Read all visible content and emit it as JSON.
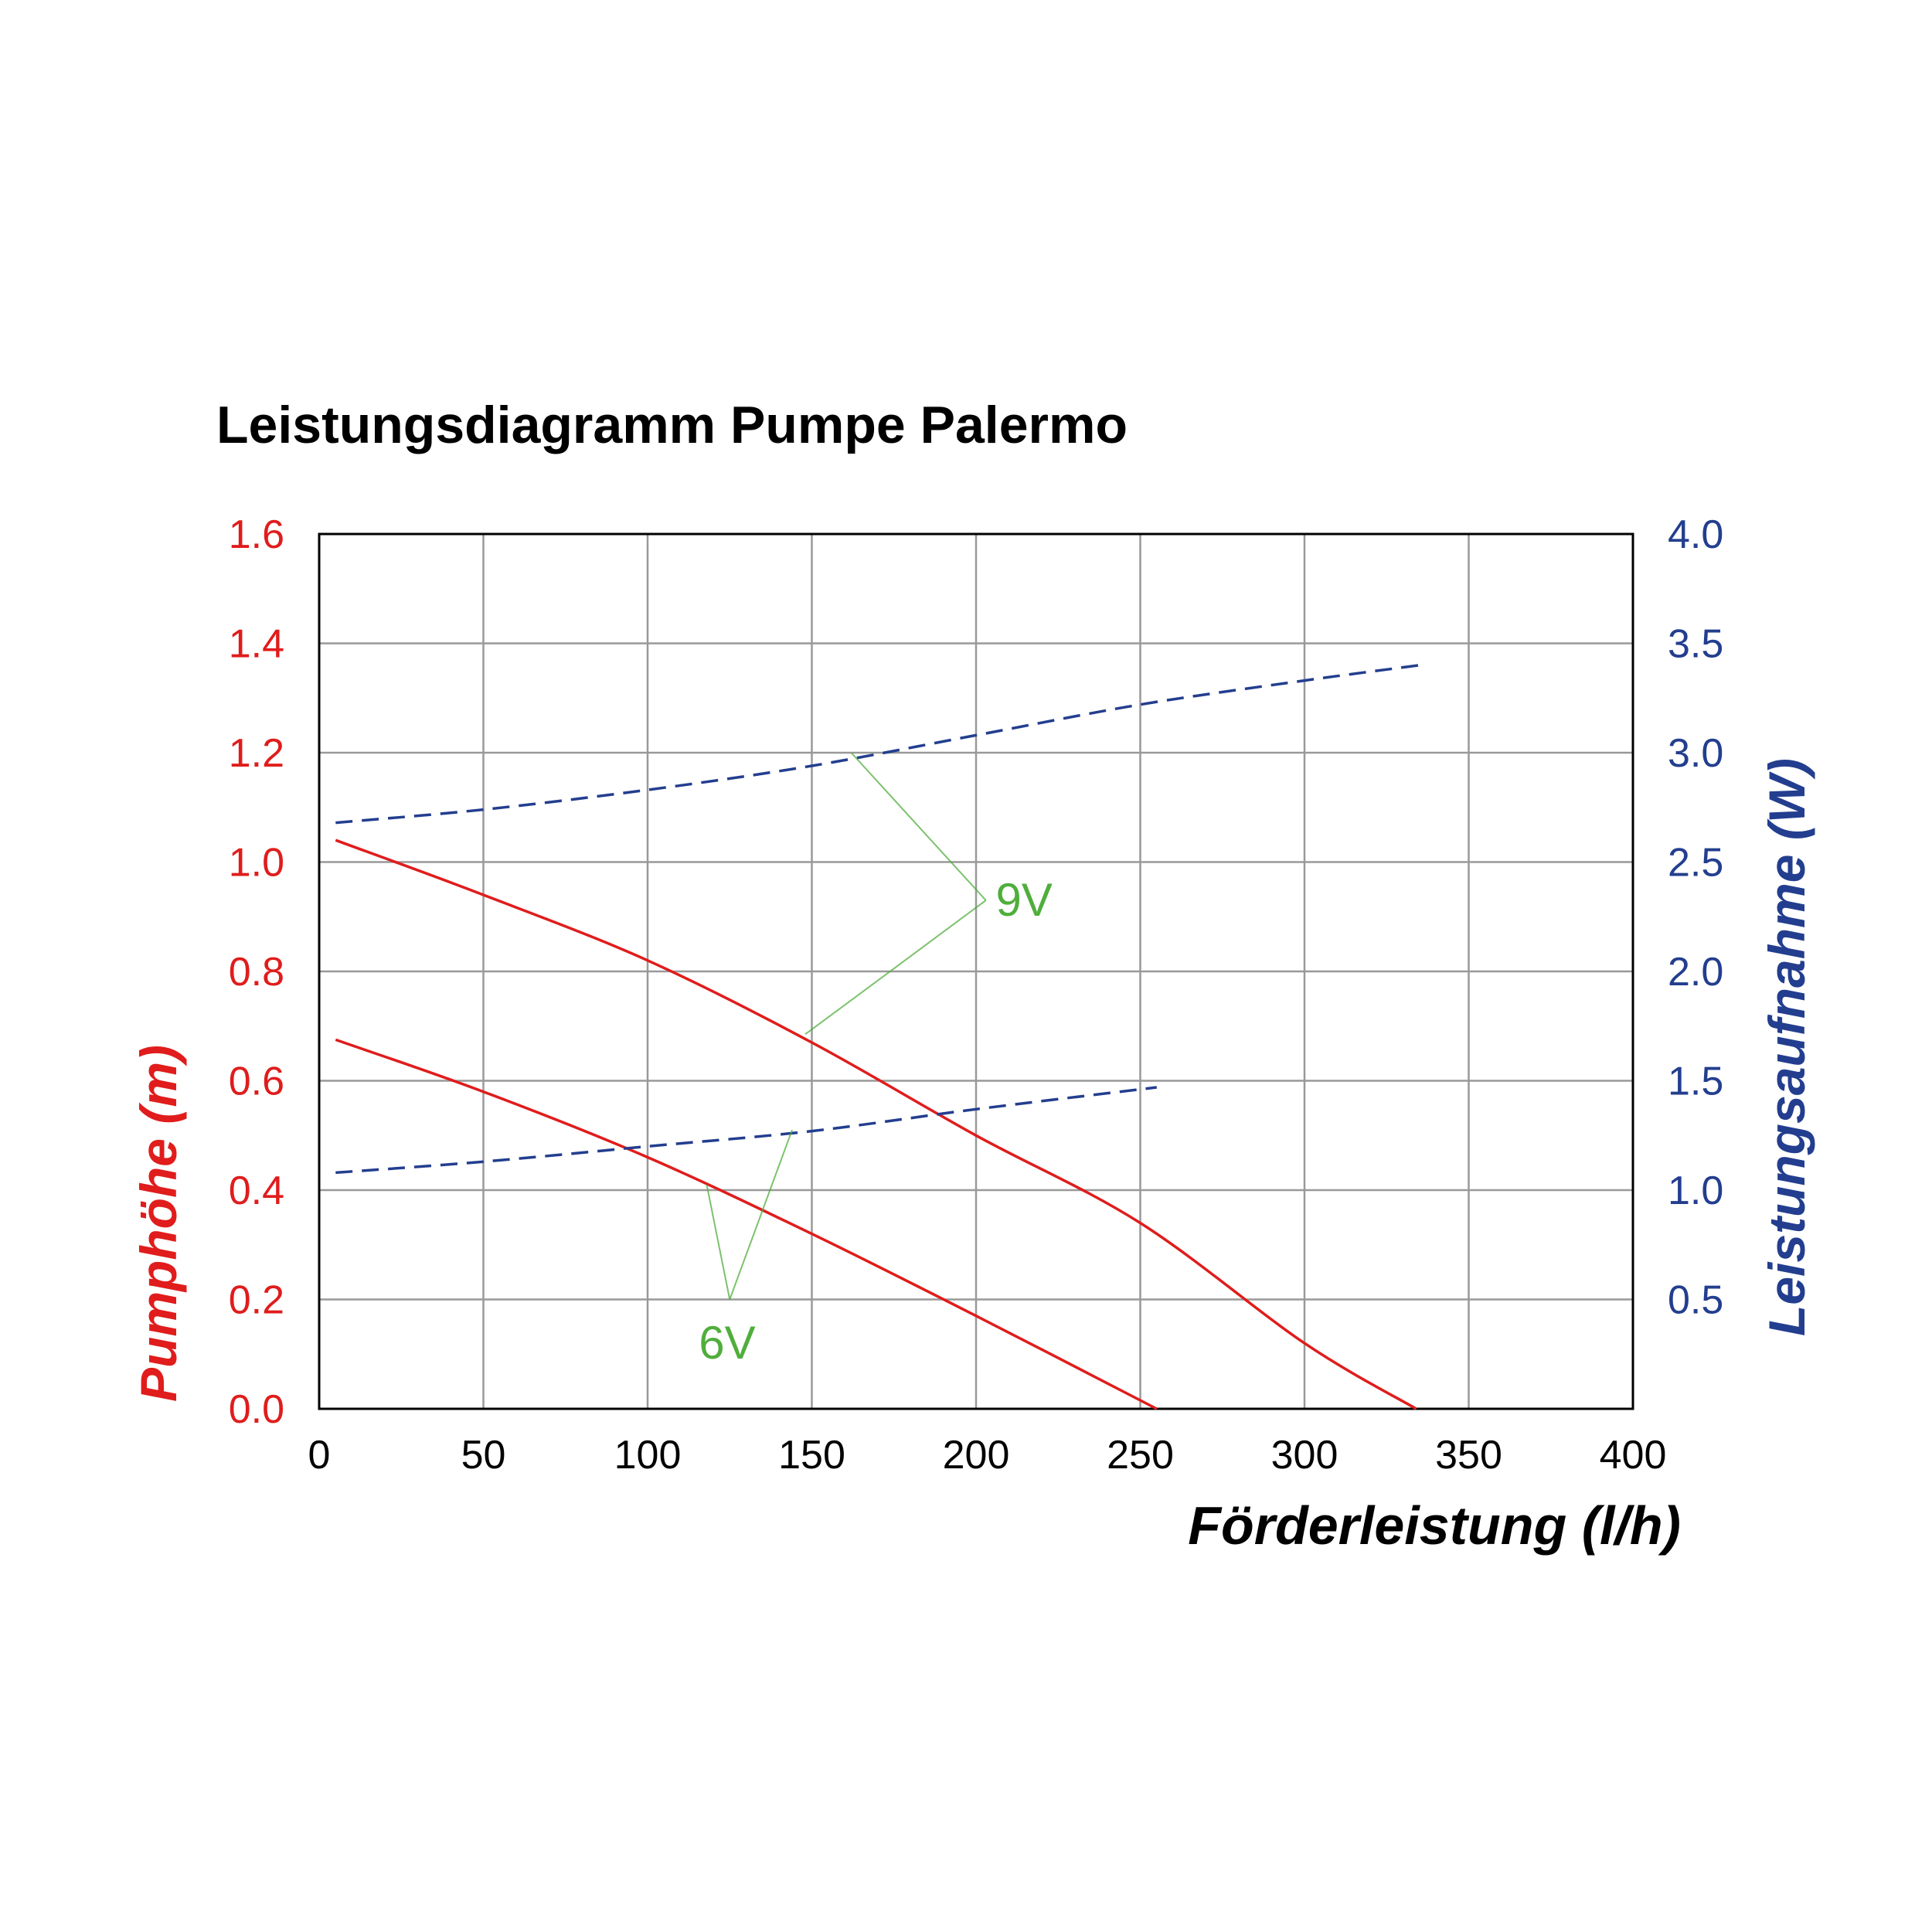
{
  "chart_data": {
    "type": "line",
    "title": "Leistungsdiagramm Pumpe Palermo",
    "xlabel": "Förderleistung (l/h)",
    "ylabel_left": "Pumphöhe (m)",
    "ylabel_right": "Leistungsaufnahme (W)",
    "xlim": [
      0,
      400
    ],
    "ylim_left": [
      0,
      1.6
    ],
    "ylim_right": [
      0,
      4.0
    ],
    "x_ticks": [
      "0",
      "50",
      "100",
      "150",
      "200",
      "250",
      "300",
      "350",
      "400"
    ],
    "y_left_ticks": [
      "0.0",
      "0.2",
      "0.4",
      "0.6",
      "0.8",
      "1.0",
      "1.2",
      "1.4",
      "1.6"
    ],
    "y_right_ticks": [
      "0.5",
      "1.0",
      "1.5",
      "2.0",
      "2.5",
      "3.0",
      "3.5",
      "4.0"
    ],
    "grid": true,
    "colors": {
      "head": "#e01c1c",
      "power": "#233e8f",
      "annotation": "#4fae3c"
    },
    "series": [
      {
        "axis": "left",
        "style": "solid",
        "color": "#e01c1c",
        "x": [
          5,
          50,
          100,
          150,
          200,
          250,
          300,
          334
        ],
        "y": [
          1.04,
          0.94,
          0.82,
          0.67,
          0.5,
          0.34,
          0.12,
          0.0
        ]
      },
      {
        "axis": "left",
        "style": "solid",
        "color": "#e01c1c",
        "x": [
          5,
          50,
          100,
          150,
          200,
          255
        ],
        "y": [
          0.675,
          0.58,
          0.46,
          0.32,
          0.17,
          0.0
        ]
      },
      {
        "axis": "right",
        "style": "dashed",
        "color": "#233e8f",
        "x": [
          5,
          50,
          100,
          150,
          200,
          250,
          300,
          335
        ],
        "y": [
          2.68,
          2.74,
          2.83,
          2.94,
          3.08,
          3.22,
          3.33,
          3.4
        ]
      },
      {
        "axis": "right",
        "style": "dashed",
        "color": "#233e8f",
        "x": [
          5,
          50,
          100,
          150,
          200,
          255
        ],
        "y": [
          1.08,
          1.13,
          1.2,
          1.27,
          1.37,
          1.47
        ]
      }
    ],
    "annotations": [
      {
        "text": "9V",
        "lines": [
          {
            "from": [
              162,
              1.2
            ],
            "to": [
              203,
              0.93
            ]
          },
          {
            "from": [
              203,
              0.93
            ],
            "to": [
              148,
              0.685
            ]
          }
        ],
        "label_at": [
          206,
          0.93
        ]
      },
      {
        "text": "6V",
        "lines": [
          {
            "from": [
              118,
              0.41
            ],
            "to": [
              125,
              0.2
            ]
          },
          {
            "from": [
              125,
              0.2
            ],
            "to": [
              144,
              0.51
            ]
          }
        ],
        "label_at": [
          125,
          0.12
        ]
      }
    ]
  }
}
